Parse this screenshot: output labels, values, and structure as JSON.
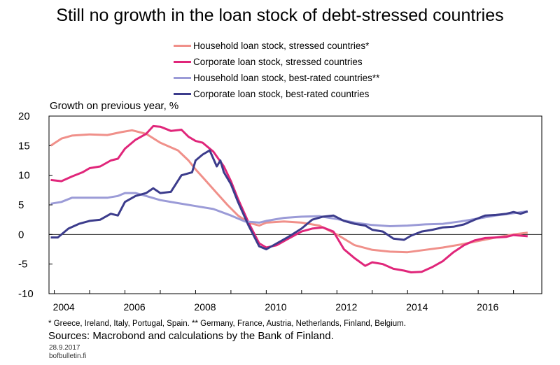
{
  "title": "Still no growth in the loan stock of debt-stressed countries",
  "ylabel": "Growth on previous year, %",
  "footnote": "* Greece, Ireland, Italy, Portugal, Spain. ** Germany, France, Austria, Netherlands, Finland, Belgium.",
  "sources": "Sources: Macrobond and calculations by the Bank of Finland.",
  "date": "28.9.2017",
  "site": "bofbulletin.fi",
  "chart_data": {
    "type": "line",
    "grid": false,
    "legend_position": "top-center",
    "xlim": [
      2003.85,
      2017.8
    ],
    "ylim": [
      -10,
      20
    ],
    "x_ticks": [
      "2004",
      "2006",
      "2008",
      "2010",
      "2012",
      "2014",
      "2016"
    ],
    "y_ticks": [
      "20",
      "15",
      "10",
      "5",
      "0",
      "-5",
      "-10"
    ],
    "series": [
      {
        "name": "Household loan stock, stressed countries*",
        "color": "#f0908a",
        "x": [
          2003.9,
          2004.2,
          2004.5,
          2005.0,
          2005.5,
          2005.9,
          2006.2,
          2006.6,
          2007.0,
          2007.5,
          2007.8,
          2008.0,
          2008.3,
          2008.6,
          2008.9,
          2009.2,
          2009.5,
          2009.8,
          2010.0,
          2010.5,
          2011.0,
          2011.5,
          2012.0,
          2012.5,
          2013.0,
          2013.5,
          2014.0,
          2014.5,
          2015.0,
          2015.5,
          2016.0,
          2016.5,
          2017.0,
          2017.4
        ],
        "y": [
          15.0,
          16.2,
          16.7,
          16.9,
          16.8,
          17.3,
          17.6,
          17.0,
          15.5,
          14.2,
          12.5,
          11.0,
          9.0,
          7.0,
          5.0,
          3.2,
          2.0,
          1.5,
          2.0,
          2.2,
          2.0,
          1.5,
          0.0,
          -1.8,
          -2.6,
          -2.9,
          -3.0,
          -2.6,
          -2.2,
          -1.7,
          -1.1,
          -0.5,
          0.0,
          0.3
        ]
      },
      {
        "name": "Corporate loan stock, stressed countries",
        "color": "#e0267a",
        "x": [
          2003.9,
          2004.2,
          2004.5,
          2004.8,
          2005.0,
          2005.3,
          2005.6,
          2005.8,
          2006.0,
          2006.3,
          2006.6,
          2006.8,
          2007.0,
          2007.3,
          2007.6,
          2007.8,
          2008.0,
          2008.2,
          2008.5,
          2008.8,
          2009.0,
          2009.2,
          2009.5,
          2009.8,
          2010.0,
          2010.3,
          2010.6,
          2011.0,
          2011.3,
          2011.6,
          2011.9,
          2012.2,
          2012.5,
          2012.8,
          2013.0,
          2013.3,
          2013.6,
          2013.9,
          2014.1,
          2014.4,
          2014.7,
          2015.0,
          2015.3,
          2015.6,
          2015.9,
          2016.2,
          2016.5,
          2016.8,
          2017.0,
          2017.2,
          2017.4
        ],
        "y": [
          9.2,
          9.0,
          9.8,
          10.5,
          11.2,
          11.5,
          12.5,
          12.8,
          14.5,
          16.0,
          17.0,
          18.3,
          18.2,
          17.5,
          17.7,
          16.5,
          15.8,
          15.5,
          14.0,
          11.5,
          9.0,
          6.0,
          2.0,
          -1.5,
          -2.2,
          -1.8,
          -0.8,
          0.5,
          1.0,
          1.2,
          0.5,
          -2.5,
          -4.0,
          -5.3,
          -4.7,
          -5.0,
          -5.8,
          -6.1,
          -6.4,
          -6.3,
          -5.5,
          -4.5,
          -3.0,
          -1.8,
          -1.0,
          -0.6,
          -0.5,
          -0.4,
          -0.1,
          -0.2,
          -0.3
        ]
      },
      {
        "name": "Household loan stock, best-rated countries**",
        "color": "#9b9bd7",
        "x": [
          2003.9,
          2004.2,
          2004.5,
          2005.0,
          2005.5,
          2005.8,
          2006.0,
          2006.3,
          2006.6,
          2007.0,
          2007.5,
          2008.0,
          2008.5,
          2009.0,
          2009.4,
          2009.8,
          2010.0,
          2010.5,
          2011.0,
          2011.5,
          2012.0,
          2012.5,
          2013.0,
          2013.5,
          2014.0,
          2014.5,
          2015.0,
          2015.5,
          2016.0,
          2016.5,
          2017.0,
          2017.4
        ],
        "y": [
          5.2,
          5.5,
          6.2,
          6.2,
          6.2,
          6.5,
          7.0,
          7.0,
          6.5,
          5.8,
          5.3,
          4.8,
          4.3,
          3.2,
          2.2,
          2.0,
          2.3,
          2.8,
          3.0,
          3.1,
          2.6,
          2.0,
          1.6,
          1.4,
          1.5,
          1.7,
          1.8,
          2.2,
          2.7,
          3.2,
          3.6,
          3.9
        ]
      },
      {
        "name": "Corporate loan stock, best-rated countries",
        "color": "#3c3c8c",
        "x": [
          2003.9,
          2004.1,
          2004.4,
          2004.7,
          2005.0,
          2005.3,
          2005.6,
          2005.8,
          2006.0,
          2006.3,
          2006.6,
          2006.8,
          2007.0,
          2007.3,
          2007.6,
          2007.9,
          2008.0,
          2008.2,
          2008.4,
          2008.6,
          2008.7,
          2008.8,
          2009.0,
          2009.2,
          2009.5,
          2009.8,
          2010.0,
          2010.3,
          2010.6,
          2011.0,
          2011.3,
          2011.6,
          2011.9,
          2012.2,
          2012.5,
          2012.8,
          2013.0,
          2013.3,
          2013.6,
          2013.9,
          2014.1,
          2014.4,
          2014.7,
          2015.0,
          2015.3,
          2015.6,
          2015.9,
          2016.2,
          2016.5,
          2016.8,
          2017.0,
          2017.2,
          2017.4
        ],
        "y": [
          -0.5,
          -0.5,
          1.0,
          1.8,
          2.3,
          2.5,
          3.5,
          3.2,
          5.5,
          6.5,
          7.0,
          7.8,
          7.0,
          7.2,
          10.0,
          10.5,
          12.5,
          13.5,
          14.2,
          11.5,
          12.5,
          10.5,
          8.5,
          5.5,
          1.5,
          -2.0,
          -2.5,
          -1.5,
          -0.5,
          1.0,
          2.5,
          3.0,
          3.2,
          2.3,
          1.8,
          1.5,
          0.8,
          0.5,
          -0.7,
          -0.9,
          -0.2,
          0.5,
          0.8,
          1.2,
          1.3,
          1.7,
          2.5,
          3.2,
          3.3,
          3.5,
          3.8,
          3.5,
          3.9
        ]
      }
    ]
  }
}
